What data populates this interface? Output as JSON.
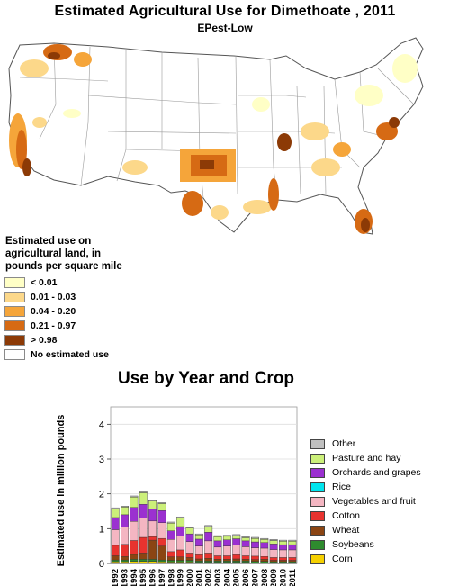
{
  "title": "Estimated Agricultural Use for Dimethoate , 2011",
  "subtitle": "EPest-Low",
  "map_legend": {
    "title": "Estimated use on agricultural land, in pounds per square mile",
    "items": [
      {
        "label": "< 0.01",
        "color": "#ffffc6"
      },
      {
        "label": "0.01 - 0.03",
        "color": "#fcd88a"
      },
      {
        "label": "0.04 - 0.20",
        "color": "#f5a53a"
      },
      {
        "label": "0.21 - 0.97",
        "color": "#d66a14"
      },
      {
        "label": "> 0.98",
        "color": "#8c3a06"
      },
      {
        "label": "No estimated use",
        "color": "#ffffff"
      }
    ]
  },
  "chart_data": {
    "type": "bar",
    "title": "Use by Year and Crop",
    "ylabel": "Estimated use in million pounds",
    "xlabel": "",
    "ylim": [
      0,
      4.5
    ],
    "yticks": [
      0,
      1,
      2,
      3,
      4
    ],
    "grid": true,
    "legend": "right",
    "categories": [
      "1992",
      "1993",
      "1994",
      "1995",
      "1996",
      "1997",
      "1998",
      "1999",
      "2000",
      "2001",
      "2002",
      "2003",
      "2004",
      "2005",
      "2006",
      "2007",
      "2008",
      "2009",
      "2010",
      "2011"
    ],
    "series": [
      {
        "name": "Corn",
        "color": "#f5d000",
        "values": [
          0.05,
          0.05,
          0.06,
          0.06,
          0.06,
          0.05,
          0.04,
          0.04,
          0.04,
          0.03,
          0.03,
          0.03,
          0.03,
          0.03,
          0.03,
          0.02,
          0.02,
          0.02,
          0.02,
          0.02
        ]
      },
      {
        "name": "Soybeans",
        "color": "#2e8b2e",
        "values": [
          0.05,
          0.05,
          0.06,
          0.06,
          0.06,
          0.05,
          0.05,
          0.05,
          0.05,
          0.04,
          0.04,
          0.04,
          0.04,
          0.04,
          0.04,
          0.04,
          0.04,
          0.03,
          0.03,
          0.03
        ]
      },
      {
        "name": "Wheat",
        "color": "#8b4513",
        "values": [
          0.12,
          0.1,
          0.14,
          0.18,
          0.55,
          0.4,
          0.1,
          0.1,
          0.08,
          0.06,
          0.08,
          0.05,
          0.05,
          0.06,
          0.05,
          0.05,
          0.06,
          0.04,
          0.04,
          0.04
        ]
      },
      {
        "name": "Cotton",
        "color": "#e8332f",
        "values": [
          0.3,
          0.35,
          0.4,
          0.45,
          0.1,
          0.22,
          0.15,
          0.2,
          0.13,
          0.12,
          0.15,
          0.1,
          0.1,
          0.12,
          0.1,
          0.1,
          0.08,
          0.08,
          0.08,
          0.08
        ]
      },
      {
        "name": "Vegetables and fruit",
        "color": "#f4b6c2",
        "values": [
          0.45,
          0.5,
          0.55,
          0.55,
          0.45,
          0.45,
          0.35,
          0.4,
          0.33,
          0.25,
          0.35,
          0.25,
          0.28,
          0.28,
          0.26,
          0.24,
          0.24,
          0.23,
          0.22,
          0.22
        ]
      },
      {
        "name": "Rice",
        "color": "#00e5ee",
        "values": [
          0.0,
          0.0,
          0.0,
          0.0,
          0.0,
          0.0,
          0.0,
          0.0,
          0.0,
          0.0,
          0.0,
          0.0,
          0.0,
          0.0,
          0.0,
          0.0,
          0.0,
          0.0,
          0.0,
          0.0
        ]
      },
      {
        "name": "Orchards and grapes",
        "color": "#9b30d0",
        "values": [
          0.35,
          0.35,
          0.4,
          0.4,
          0.35,
          0.35,
          0.25,
          0.27,
          0.22,
          0.2,
          0.25,
          0.18,
          0.18,
          0.18,
          0.17,
          0.17,
          0.16,
          0.16,
          0.15,
          0.15
        ]
      },
      {
        "name": "Pasture and hay",
        "color": "#ccf07a",
        "values": [
          0.25,
          0.22,
          0.3,
          0.33,
          0.22,
          0.2,
          0.22,
          0.25,
          0.17,
          0.12,
          0.16,
          0.12,
          0.1,
          0.09,
          0.09,
          0.1,
          0.09,
          0.1,
          0.1,
          0.1
        ]
      },
      {
        "name": "Other",
        "color": "#c0c0c0",
        "values": [
          0.03,
          0.03,
          0.03,
          0.03,
          0.03,
          0.03,
          0.03,
          0.03,
          0.03,
          0.03,
          0.03,
          0.03,
          0.03,
          0.03,
          0.03,
          0.03,
          0.03,
          0.03,
          0.03,
          0.03
        ]
      }
    ]
  }
}
